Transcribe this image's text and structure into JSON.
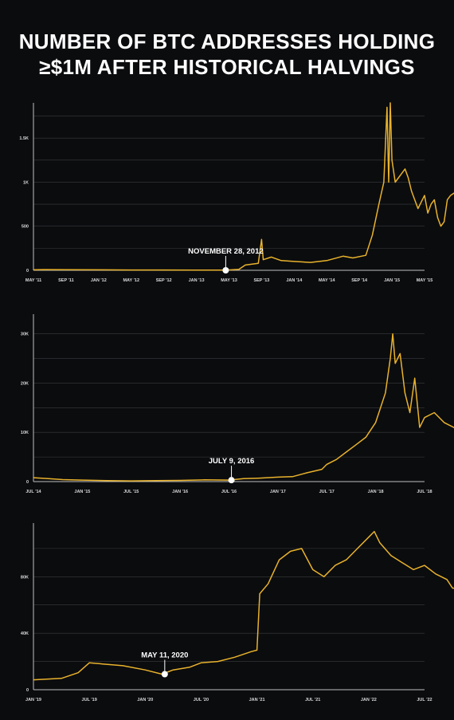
{
  "title_line1": "NUMBER OF BTC ADDRESSES HOLDING",
  "title_line2": "≥$1M AFTER HISTORICAL HALVINGS",
  "colors": {
    "background": "#0b0c0e",
    "line": "#e8b22c",
    "grid": "#3a3b3e",
    "axis": "#bfbfbf",
    "marker": "#ffffff"
  },
  "chart_data": [
    {
      "type": "line",
      "x_labels": [
        "MAY '11",
        "SEP '11",
        "JAN '12",
        "MAY '12",
        "SEP '12",
        "JAN '13",
        "MAY '13",
        "SEP '13",
        "JAN '14",
        "MAY '14",
        "SEP '14",
        "JAN '15",
        "MAY '15"
      ],
      "y_ticks": [
        0,
        500,
        1000,
        1500
      ],
      "y_tick_labels": [
        "0",
        "500",
        "1K",
        "1.5K"
      ],
      "ylim": [
        0,
        1900
      ],
      "grid": true,
      "annotation": {
        "label": "NOVEMBER 28, 2012",
        "x": 5.9,
        "y": 0
      },
      "series": [
        {
          "points": [
            [
              0,
              5
            ],
            [
              0.3,
              8
            ],
            [
              1,
              6
            ],
            [
              2,
              5
            ],
            [
              3,
              4
            ],
            [
              4,
              4
            ],
            [
              5,
              3
            ],
            [
              5.9,
              2
            ],
            [
              6.3,
              10
            ],
            [
              6.5,
              60
            ],
            [
              6.9,
              80
            ],
            [
              7.0,
              350
            ],
            [
              7.05,
              120
            ],
            [
              7.3,
              150
            ],
            [
              7.6,
              110
            ],
            [
              8,
              100
            ],
            [
              8.5,
              90
            ],
            [
              9,
              110
            ],
            [
              9.5,
              160
            ],
            [
              9.8,
              140
            ],
            [
              10.2,
              170
            ],
            [
              10.4,
              400
            ],
            [
              10.6,
              750
            ],
            [
              10.75,
              1000
            ],
            [
              10.85,
              1850
            ],
            [
              10.9,
              1000
            ],
            [
              10.95,
              1900
            ],
            [
              11.0,
              1250
            ],
            [
              11.1,
              1000
            ],
            [
              11.3,
              1100
            ],
            [
              11.4,
              1150
            ],
            [
              11.5,
              1050
            ],
            [
              11.6,
              900
            ],
            [
              11.7,
              800
            ],
            [
              11.8,
              700
            ],
            [
              12.0,
              850
            ],
            [
              12.1,
              650
            ],
            [
              12.2,
              750
            ],
            [
              12.3,
              800
            ],
            [
              12.4,
              600
            ],
            [
              12.5,
              500
            ],
            [
              12.6,
              550
            ],
            [
              12.7,
              800
            ],
            [
              12.8,
              850
            ],
            [
              13.0,
              900
            ],
            [
              13.2,
              920
            ],
            [
              13.4,
              880
            ],
            [
              13.6,
              850
            ],
            [
              13.8,
              750
            ],
            [
              14.0,
              650
            ],
            [
              14.2,
              550
            ],
            [
              14.4,
              520
            ],
            [
              14.6,
              480
            ],
            [
              14.8,
              450
            ],
            [
              15.0,
              420
            ],
            [
              15.2,
              380
            ],
            [
              15.4,
              350
            ],
            [
              15.6,
              320
            ],
            [
              15.8,
              280
            ],
            [
              16.0,
              300
            ],
            [
              16.2,
              270
            ],
            [
              16.5,
              260
            ],
            [
              17.0,
              260
            ],
            [
              17.3,
              280
            ],
            [
              17.6,
              250
            ]
          ]
        }
      ]
    },
    {
      "type": "line",
      "x_labels": [
        "JUL '14",
        "JAN '15",
        "JUL '15",
        "JAN '16",
        "JUL '16",
        "JAN '17",
        "JUL '17",
        "JAN '18",
        "JUL '18"
      ],
      "y_ticks": [
        0,
        10000,
        20000,
        30000
      ],
      "y_tick_labels": [
        "0",
        "10K",
        "20K",
        "30K"
      ],
      "ylim": [
        0,
        34000
      ],
      "grid": true,
      "annotation": {
        "label": "JULY 9, 2016",
        "x": 4.05,
        "y": 300
      },
      "series": [
        {
          "points": [
            [
              0,
              800
            ],
            [
              0.3,
              600
            ],
            [
              0.6,
              400
            ],
            [
              1,
              300
            ],
            [
              1.5,
              200
            ],
            [
              2,
              150
            ],
            [
              2.5,
              200
            ],
            [
              3,
              250
            ],
            [
              3.5,
              350
            ],
            [
              4.0,
              300
            ],
            [
              4.3,
              600
            ],
            [
              4.6,
              700
            ],
            [
              5.0,
              900
            ],
            [
              5.3,
              1000
            ],
            [
              5.6,
              1800
            ],
            [
              5.9,
              2500
            ],
            [
              6.0,
              3500
            ],
            [
              6.2,
              4500
            ],
            [
              6.4,
              6000
            ],
            [
              6.6,
              7500
            ],
            [
              6.8,
              9000
            ],
            [
              7.0,
              12000
            ],
            [
              7.2,
              18000
            ],
            [
              7.3,
              25000
            ],
            [
              7.35,
              30000
            ],
            [
              7.4,
              24000
            ],
            [
              7.5,
              26000
            ],
            [
              7.6,
              18000
            ],
            [
              7.7,
              14000
            ],
            [
              7.8,
              21000
            ],
            [
              7.9,
              11000
            ],
            [
              8.0,
              13000
            ],
            [
              8.2,
              14000
            ],
            [
              8.4,
              12000
            ],
            [
              8.6,
              11000
            ],
            [
              8.8,
              10500
            ],
            [
              9.0,
              11000
            ],
            [
              9.2,
              9500
            ],
            [
              9.4,
              10500
            ],
            [
              9.6,
              10000
            ],
            [
              9.8,
              11000
            ],
            [
              10.0,
              10000
            ]
          ]
        }
      ]
    },
    {
      "type": "line",
      "x_labels": [
        "JAN '19",
        "JUL '19",
        "JAN '20",
        "JUL '20",
        "JAN '21",
        "JUL '21",
        "JAN '22",
        "JUL '22"
      ],
      "y_ticks": [
        0,
        40000,
        80000
      ],
      "y_tick_labels": [
        "0",
        "40K",
        "80K"
      ],
      "ylim": [
        0,
        118000
      ],
      "grid": true,
      "annotation": {
        "label": "MAY 11, 2020",
        "x": 2.35,
        "y": 11000
      },
      "series": [
        {
          "points": [
            [
              0,
              7000
            ],
            [
              0.5,
              8000
            ],
            [
              0.8,
              12000
            ],
            [
              1.0,
              19000
            ],
            [
              1.3,
              18000
            ],
            [
              1.6,
              17000
            ],
            [
              2.0,
              14000
            ],
            [
              2.3,
              11000
            ],
            [
              2.5,
              14000
            ],
            [
              2.8,
              16000
            ],
            [
              3.0,
              19000
            ],
            [
              3.3,
              20000
            ],
            [
              3.6,
              23000
            ],
            [
              3.9,
              27000
            ],
            [
              4.0,
              28000
            ],
            [
              4.05,
              68000
            ],
            [
              4.2,
              75000
            ],
            [
              4.4,
              92000
            ],
            [
              4.6,
              98000
            ],
            [
              4.8,
              100000
            ],
            [
              5.0,
              85000
            ],
            [
              5.2,
              80000
            ],
            [
              5.4,
              88000
            ],
            [
              5.6,
              92000
            ],
            [
              5.8,
              100000
            ],
            [
              6.0,
              108000
            ],
            [
              6.1,
              112000
            ],
            [
              6.2,
              104000
            ],
            [
              6.4,
              95000
            ],
            [
              6.6,
              90000
            ],
            [
              6.8,
              85000
            ],
            [
              7.0,
              88000
            ],
            [
              7.2,
              82000
            ],
            [
              7.4,
              78000
            ],
            [
              7.5,
              72000
            ],
            [
              7.7,
              71000
            ]
          ]
        }
      ]
    }
  ]
}
